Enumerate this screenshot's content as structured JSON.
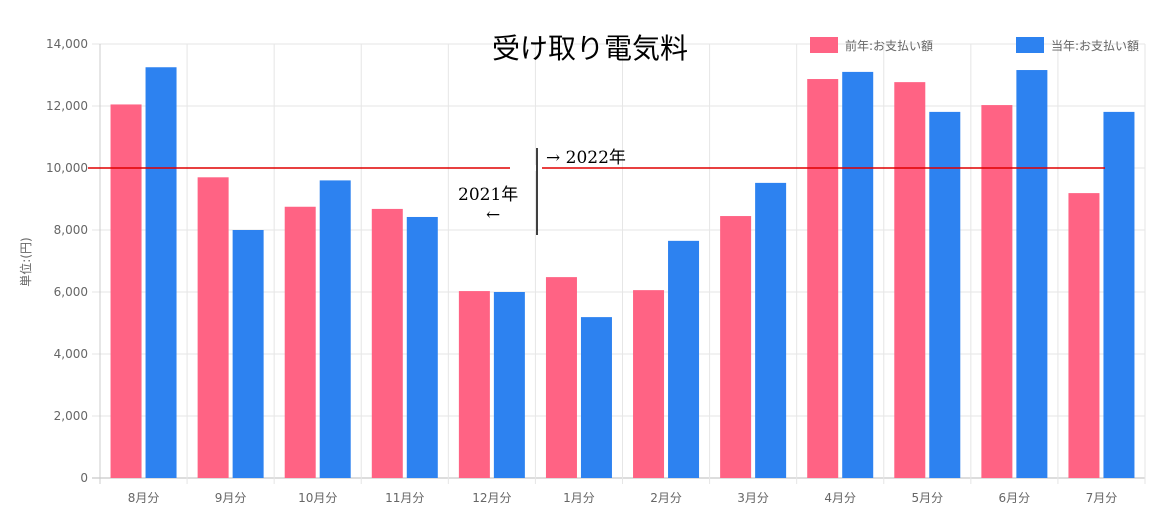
{
  "chart_data": {
    "type": "bar",
    "title": "受け取り電気料",
    "ylabel": "単位:(円)",
    "xlabel": "",
    "ylim": [
      0,
      14000
    ],
    "yticks": [
      "0",
      "2,000",
      "4,000",
      "6,000",
      "8,000",
      "10,000",
      "12,000",
      "14,000"
    ],
    "categories": [
      "8月分",
      "9月分",
      "10月分",
      "11月分",
      "12月分",
      "1月分",
      "2月分",
      "3月分",
      "4月分",
      "5月分",
      "6月分",
      "7月分"
    ],
    "series": [
      {
        "name": "前年:お支払い額",
        "color": "#ff6384",
        "values": [
          12050,
          9700,
          8750,
          8680,
          6030,
          6480,
          6060,
          8450,
          12870,
          12770,
          12030,
          9190
        ]
      },
      {
        "name": "当年:お支払い額",
        "color": "#2d82f0",
        "values": [
          13250,
          8000,
          9600,
          8420,
          6000,
          5190,
          7650,
          9520,
          13100,
          11810,
          13160,
          11810
        ]
      }
    ],
    "legend_position": "top-right",
    "reference_line": {
      "value": 10000,
      "color": "#e00000"
    },
    "annotations": {
      "right": "→ 2022年",
      "left": "2021年",
      "left_arrow": "←"
    }
  }
}
